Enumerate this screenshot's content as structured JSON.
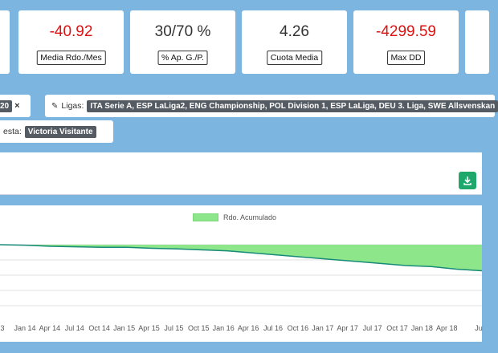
{
  "stats": [
    {
      "value": "-40.92",
      "label": "Media Rdo./Mes",
      "negative": true
    },
    {
      "value": "30/70 %",
      "label": "% Ap. G./P.",
      "negative": false
    },
    {
      "value": "4.26",
      "label": "Cuota Media",
      "negative": false
    },
    {
      "value": "-4299.59",
      "label": "Max DD",
      "negative": true
    }
  ],
  "filters": {
    "partial_tag": "20",
    "close_symbol": "×",
    "ligas_label": "Ligas:",
    "ligas_value": "ITA Serie A, ESP LaLiga2, ENG Championship, POL Division 1, ESP LaLiga, DEU 3. Liga, SWE Allsvenskan",
    "apuesta_label": "esta:",
    "apuesta_value": "Victoria Visitante"
  },
  "chart_data": {
    "type": "area",
    "series": [
      {
        "name": "Rdo. Acumulado",
        "color": "#8ee68b"
      }
    ],
    "x_tick_labels": [
      "3",
      "Jan 14",
      "Apr 14",
      "Jul 14",
      "Oct 14",
      "Jan 15",
      "Apr 15",
      "Jul 15",
      "Oct 15",
      "Jan 16",
      "Apr 16",
      "Jul 16",
      "Oct 16",
      "Jan 17",
      "Apr 17",
      "Jul 17",
      "Oct 17",
      "Jan 18",
      "Apr 18",
      "Ju"
    ],
    "relative_values": [
      0.0,
      0.01,
      0.03,
      0.04,
      0.05,
      0.05,
      0.07,
      0.08,
      0.1,
      0.12,
      0.16,
      0.2,
      0.24,
      0.28,
      0.32,
      0.36,
      0.4,
      0.42,
      0.47,
      0.5
    ],
    "grid": true
  }
}
